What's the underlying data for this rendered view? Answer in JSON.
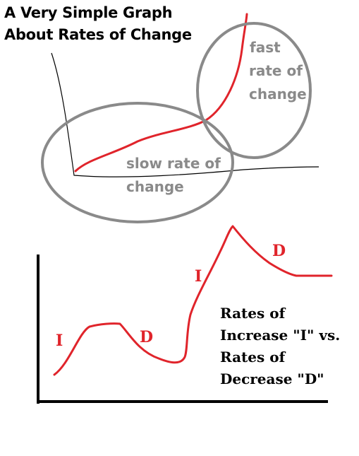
{
  "title": {
    "line1": "A Very Simple Graph",
    "line2": "About Rates of Change"
  },
  "top_graph": {
    "fast_label": [
      "fast",
      "rate of",
      "change"
    ],
    "slow_label": [
      "slow rate of",
      "change"
    ]
  },
  "bottom_graph": {
    "increase_letter": "I",
    "decrease_letter": "D",
    "caption": [
      "Rates of",
      "Increase \"I\" vs.",
      "Rates of",
      "Decrease \"D\""
    ]
  },
  "colors": {
    "curve": "#e0242b",
    "ellipse": "#8a8a8a",
    "axis": "#000000",
    "label_gray": "#8a8a8a"
  }
}
